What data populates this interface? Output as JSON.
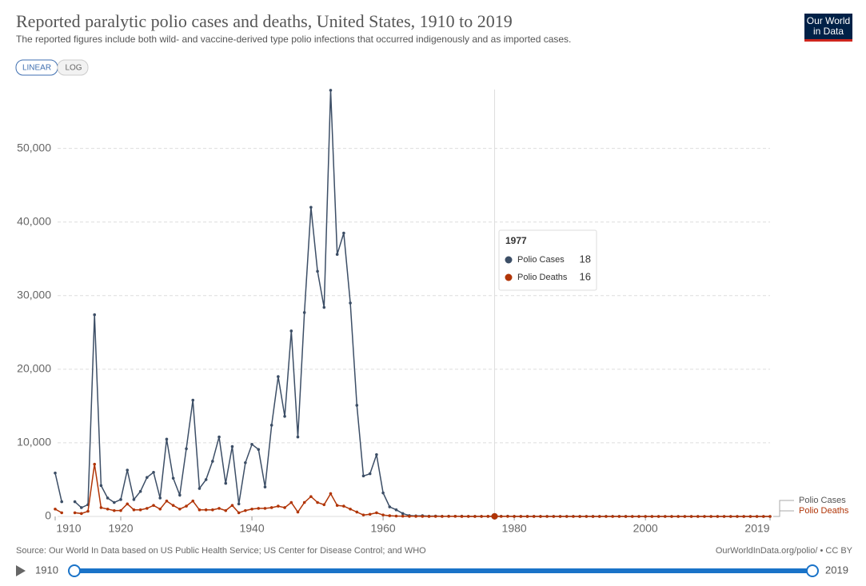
{
  "chart_data": {
    "type": "line",
    "title": "Reported paralytic polio cases and deaths, United States, 1910 to 2019",
    "subtitle": "The reported figures include both wild- and vaccine-derived type polio infections that occurred indigenously and as imported cases.",
    "logo": [
      "Our World",
      "in Data"
    ],
    "controls": [
      "LINEAR",
      "LOG"
    ],
    "source": "Source: Our World In Data based on US Public Health Service; US Center for Disease Control; and WHO",
    "url": "OurWorldInData.org/polio/ • CC BY",
    "timeline": [
      1910,
      2019
    ],
    "x": [
      1910,
      1911,
      1912,
      1913,
      1914,
      1915,
      1916,
      1917,
      1918,
      1919,
      1920,
      1921,
      1922,
      1923,
      1924,
      1925,
      1926,
      1927,
      1928,
      1929,
      1930,
      1931,
      1932,
      1933,
      1934,
      1935,
      1936,
      1937,
      1938,
      1939,
      1940,
      1941,
      1942,
      1943,
      1944,
      1945,
      1946,
      1947,
      1948,
      1949,
      1950,
      1951,
      1952,
      1953,
      1954,
      1955,
      1956,
      1957,
      1958,
      1959,
      1960,
      1961,
      1962,
      1963,
      1964,
      1965,
      1966,
      1967,
      1968,
      1969,
      1970,
      1971,
      1972,
      1973,
      1974,
      1975,
      1976,
      1977,
      1978,
      1979,
      1980,
      1981,
      1982,
      1983,
      1984,
      1985,
      1986,
      1987,
      1988,
      1989,
      1990,
      1991,
      1992,
      1993,
      1994,
      1995,
      1996,
      1997,
      1998,
      1999,
      2000,
      2001,
      2002,
      2003,
      2004,
      2005,
      2006,
      2007,
      2008,
      2009,
      2010,
      2011,
      2012,
      2013,
      2014,
      2015,
      2016,
      2017,
      2018,
      2019
    ],
    "series": [
      {
        "name": "Polio Cases",
        "color": "#3c4e66",
        "values": [
          5900,
          2000,
          null,
          2000,
          1200,
          1600,
          27400,
          4200,
          2500,
          1900,
          2300,
          6300,
          2300,
          3400,
          5300,
          6000,
          2500,
          10500,
          5200,
          2900,
          9200,
          15800,
          3800,
          5000,
          7500,
          10800,
          4500,
          9500,
          1700,
          7300,
          9800,
          9100,
          4000,
          12400,
          19000,
          13600,
          25200,
          10800,
          27700,
          42000,
          33300,
          28400,
          57900,
          35600,
          38500,
          29000,
          15100,
          5500,
          5800,
          8400,
          3200,
          1300,
          900,
          400,
          120,
          70,
          100,
          40,
          50,
          20,
          30,
          21,
          31,
          8,
          7,
          13,
          10,
          18,
          15,
          34,
          9,
          10,
          12,
          13,
          9,
          8,
          10,
          9,
          10,
          11,
          6,
          10,
          6,
          4,
          8,
          7,
          7,
          3,
          1,
          1,
          0,
          0,
          0,
          0,
          0,
          1,
          0,
          0,
          0,
          0,
          0,
          0,
          0,
          0,
          0,
          0,
          0,
          0,
          0,
          0
        ]
      },
      {
        "name": "Polio Deaths",
        "color": "#b13507",
        "values": [
          1000,
          500,
          null,
          500,
          400,
          700,
          7100,
          1200,
          1000,
          800,
          800,
          1700,
          900,
          900,
          1100,
          1500,
          1000,
          2100,
          1500,
          1000,
          1400,
          2100,
          900,
          900,
          900,
          1100,
          800,
          1500,
          500,
          800,
          1000,
          1100,
          1100,
          1200,
          1400,
          1200,
          1900,
          600,
          1900,
          2700,
          1900,
          1600,
          3100,
          1500,
          1400,
          1000,
          600,
          200,
          300,
          500,
          200,
          100,
          50,
          40,
          20,
          20,
          9,
          5,
          10,
          13,
          7,
          18,
          2,
          10,
          3,
          9,
          16,
          16,
          13,
          10,
          5,
          4,
          3,
          2,
          2,
          1,
          1,
          0,
          1,
          1,
          0,
          1,
          0,
          0,
          0,
          0,
          0,
          0,
          0,
          0,
          0,
          0,
          0,
          0,
          0,
          0,
          0,
          0,
          0,
          0,
          0,
          0,
          0,
          0,
          0,
          0,
          0,
          0,
          0,
          0
        ]
      }
    ],
    "xlim": [
      1910,
      2019
    ],
    "xticks": [
      1910,
      1920,
      1940,
      1960,
      1980,
      2000,
      2019
    ],
    "ylim": [
      0,
      58000
    ],
    "yticks": [
      0,
      {
        "value": 10000,
        "label": "10,000"
      },
      {
        "value": 20000,
        "label": "20,000"
      },
      {
        "value": 30000,
        "label": "30,000"
      },
      {
        "value": 40000,
        "label": "40,000"
      },
      {
        "value": 50000,
        "label": "50,000"
      }
    ],
    "grid": true,
    "tooltip": {
      "x": 1977,
      "rows": [
        {
          "name": "Polio Cases",
          "value": 18
        },
        {
          "name": "Polio Deaths",
          "value": 16
        }
      ]
    }
  }
}
